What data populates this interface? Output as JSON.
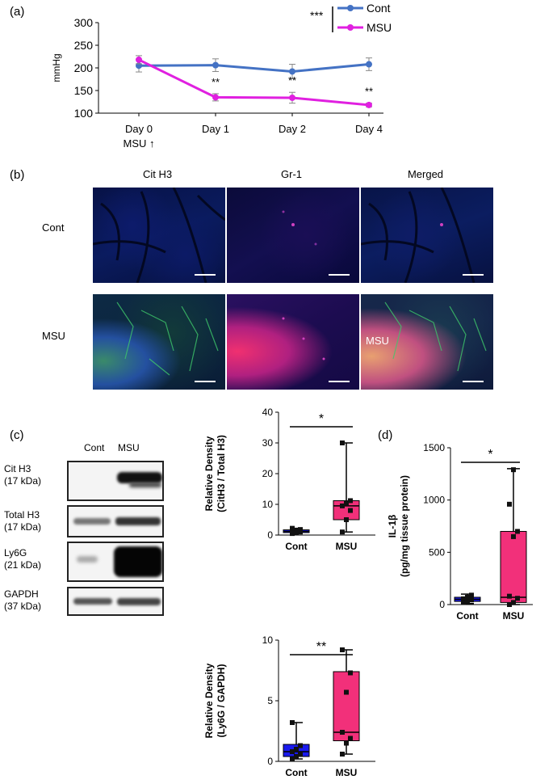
{
  "panel_labels": {
    "a": "(a)",
    "b": "(b)",
    "c": "(c)",
    "d": "(d)"
  },
  "colors": {
    "cont_line": "#4472c4",
    "msu_line": "#e020e0",
    "cont_box": "#1a1aee",
    "msu_box": "#f2307a"
  },
  "chart_data": [
    {
      "type": "line",
      "panel": "(a)",
      "ylabel": "mmHg",
      "categories": [
        "Day 0",
        "Day 1",
        "Day 2",
        "Day 4"
      ],
      "x_sublabel": "MSU ↑",
      "ylim": [
        100,
        300
      ],
      "yticks": [
        "100",
        "150",
        "200",
        "250",
        "300"
      ],
      "legend": [
        "Cont",
        "MSU"
      ],
      "legend_sig": "***",
      "series": [
        {
          "name": "Cont",
          "values": [
            205,
            206,
            192,
            208
          ],
          "err": [
            14,
            14,
            16,
            14
          ]
        },
        {
          "name": "MSU",
          "values": [
            218,
            135,
            134,
            118
          ],
          "err": [
            9,
            8,
            12,
            4
          ]
        }
      ],
      "sig_labels": [
        "",
        "**",
        "**",
        "**"
      ]
    },
    {
      "type": "box",
      "panel": "(c)",
      "ylabel": [
        "Relative Density",
        "(CitH3 / Total H3)"
      ],
      "categories": [
        "Cont",
        "MSU"
      ],
      "ylim": [
        0,
        40
      ],
      "yticks": [
        "0",
        "10",
        "20",
        "30",
        "40"
      ],
      "sig": "*",
      "boxes": [
        {
          "name": "Cont",
          "min": 0.5,
          "q1": 0.8,
          "median": 1.2,
          "q3": 1.7,
          "max": 2.2,
          "points": [
            0.5,
            0.8,
            1.0,
            1.2,
            1.5,
            1.8,
            2.2
          ]
        },
        {
          "name": "MSU",
          "min": 1.0,
          "q1": 5.0,
          "median": 9.5,
          "q3": 11.2,
          "max": 30.0,
          "points": [
            1.0,
            5.0,
            8.0,
            9.5,
            10.5,
            11.2,
            30.0
          ]
        }
      ]
    },
    {
      "type": "box",
      "panel": "(c)",
      "ylabel": [
        "Relative Density",
        "(Ly6G / GAPDH)"
      ],
      "categories": [
        "Cont",
        "MSU"
      ],
      "ylim": [
        0,
        10
      ],
      "yticks": [
        "0",
        "5",
        "10"
      ],
      "sig": "**",
      "boxes": [
        {
          "name": "Cont",
          "min": 0.2,
          "q1": 0.4,
          "median": 0.8,
          "q3": 1.4,
          "max": 3.2,
          "points": [
            0.2,
            0.4,
            0.6,
            0.8,
            1.0,
            1.3,
            3.2
          ]
        },
        {
          "name": "MSU",
          "min": 0.6,
          "q1": 1.7,
          "median": 2.4,
          "q3": 7.4,
          "max": 9.2,
          "points": [
            0.6,
            1.5,
            1.9,
            2.4,
            5.7,
            7.3,
            9.2
          ]
        }
      ]
    },
    {
      "type": "box",
      "panel": "(d)",
      "ylabel": [
        "IL-1β",
        "(pg/mg tissue protein)"
      ],
      "categories": [
        "Cont",
        "MSU"
      ],
      "ylim": [
        0,
        1500
      ],
      "yticks": [
        "0",
        "500",
        "1000",
        "1500"
      ],
      "sig": "*",
      "boxes": [
        {
          "name": "Cont",
          "min": 10,
          "q1": 30,
          "median": 50,
          "q3": 70,
          "max": 100,
          "points": [
            20,
            30,
            45,
            55,
            70,
            90
          ]
        },
        {
          "name": "MSU",
          "min": 0,
          "q1": 20,
          "median": 70,
          "q3": 700,
          "max": 1300,
          "points": [
            0,
            20,
            60,
            80,
            650,
            700,
            960,
            1290
          ]
        }
      ]
    }
  ],
  "micrographs": {
    "columns": [
      "Cit H3",
      "Gr-1",
      "Merged"
    ],
    "rows": [
      "Cont",
      "MSU"
    ],
    "overlay_label": "MSU"
  },
  "western_blot": {
    "lanes": [
      "Cont",
      "MSU"
    ],
    "bands": [
      {
        "name": "Cit H3",
        "kda": "(17 kDa)"
      },
      {
        "name": "Total H3",
        "kda": "(17 kDa)"
      },
      {
        "name": "Ly6G",
        "kda": "(21 kDa)"
      },
      {
        "name": "GAPDH",
        "kda": "(37 kDa)"
      }
    ]
  }
}
